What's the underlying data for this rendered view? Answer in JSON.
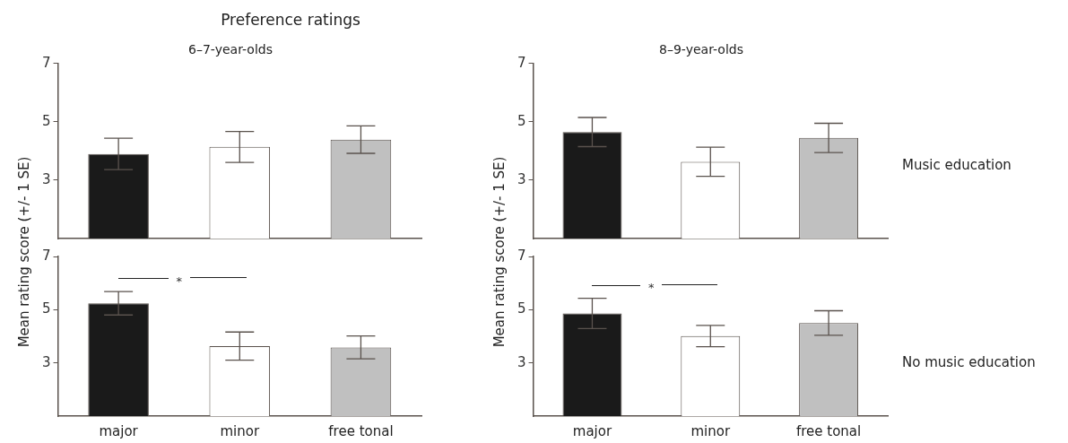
{
  "chart_data": [
    {
      "type": "bar",
      "title": "Preference ratings",
      "subtitle": "6–7-year-olds",
      "ylabel": "Mean rating score (+/- 1 SE)",
      "categories": [
        null,
        null,
        null
      ],
      "values": [
        3.9,
        4.14,
        4.39
      ],
      "colors": [
        "#1a1a1a",
        "#ffffff",
        "#c0c0c0"
      ],
      "errors": [
        0.54,
        0.53,
        0.47
      ],
      "ylim": [
        1,
        7
      ],
      "yticks": [
        3,
        5,
        7
      ],
      "tick_labels": "y",
      "grid": false,
      "legend": false
    },
    {
      "type": "bar",
      "subtitle": "8–9-year-olds",
      "ylabel": "Mean rating score (+/- 1 SE)",
      "categories": [
        null,
        null,
        null
      ],
      "values": [
        4.65,
        3.63,
        4.45
      ],
      "colors": [
        "#1a1a1a",
        "#ffffff",
        "#c0c0c0"
      ],
      "errors": [
        0.5,
        0.5,
        0.5
      ],
      "ylim": [
        1,
        7
      ],
      "yticks": [
        3,
        5,
        7
      ],
      "tick_labels": "y",
      "grid": false,
      "legend": false,
      "annotations": [
        "Music education"
      ]
    },
    {
      "type": "bar",
      "categories": [
        "major",
        "minor",
        "free tonal"
      ],
      "values": [
        5.24,
        3.63,
        3.58
      ],
      "colors": [
        "#1a1a1a",
        "#ffffff",
        "#c0c0c0"
      ],
      "errors": [
        0.44,
        0.53,
        0.43
      ],
      "ylim": [
        1,
        7
      ],
      "yticks": [
        3,
        5,
        7
      ],
      "grid": false,
      "legend": false,
      "annotations": [
        "*"
      ]
    },
    {
      "type": "bar",
      "categories": [
        "major",
        "minor",
        "free tonal"
      ],
      "values": [
        4.86,
        4.01,
        4.5
      ],
      "colors": [
        "#1a1a1a",
        "#ffffff",
        "#c0c0c0"
      ],
      "errors": [
        0.57,
        0.4,
        0.46
      ],
      "ylim": [
        1,
        7
      ],
      "yticks": [
        3,
        5,
        7
      ],
      "grid": false,
      "legend": false,
      "annotations": [
        "*",
        "No music education"
      ]
    }
  ]
}
